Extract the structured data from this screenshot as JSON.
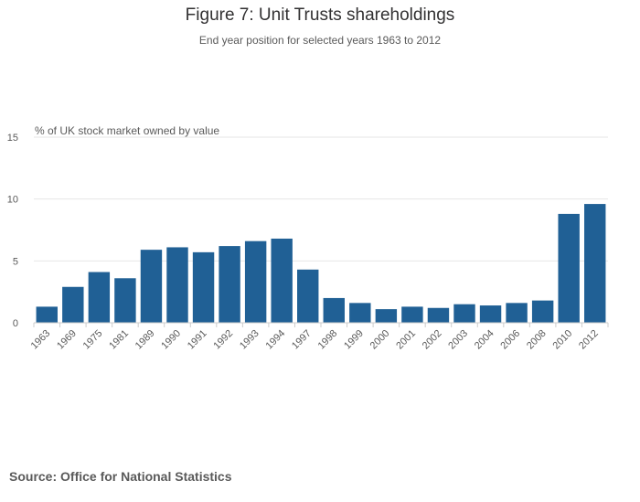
{
  "title": "Figure 7: Unit Trusts shareholdings",
  "subtitle": "End year position for selected years 1963 to 2012",
  "source": "Source: Office for National Statistics",
  "colors": {
    "bar": "#206095",
    "grid": "#e6e6e6",
    "axis": "#cccccc",
    "text": "#5a5a5a"
  },
  "chart_data": {
    "type": "bar",
    "title": "Figure 7: Unit Trusts shareholdings",
    "subtitle": "End year position for selected years 1963 to 2012",
    "xlabel": "",
    "ylabel": "% of UK stock market owned by value",
    "ylim": [
      0,
      15
    ],
    "yticks": [
      0,
      5,
      10,
      15
    ],
    "grid": true,
    "categories": [
      "1963",
      "1969",
      "1975",
      "1981",
      "1989",
      "1990",
      "1991",
      "1992",
      "1993",
      "1994",
      "1997",
      "1998",
      "1999",
      "2000",
      "2001",
      "2002",
      "2003",
      "2004",
      "2006",
      "2008",
      "2010",
      "2012"
    ],
    "values": [
      1.3,
      2.9,
      4.1,
      3.6,
      5.9,
      6.1,
      5.7,
      6.2,
      6.6,
      6.8,
      4.3,
      2.0,
      1.6,
      1.1,
      1.3,
      1.2,
      1.5,
      1.4,
      1.6,
      1.8,
      8.8,
      9.6
    ]
  }
}
